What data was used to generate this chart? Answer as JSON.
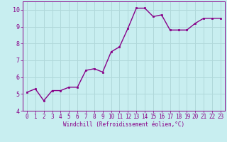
{
  "x": [
    0,
    1,
    2,
    3,
    4,
    5,
    6,
    7,
    8,
    9,
    10,
    11,
    12,
    13,
    14,
    15,
    16,
    17,
    18,
    19,
    20,
    21,
    22,
    23
  ],
  "y": [
    5.1,
    5.3,
    4.6,
    5.2,
    5.2,
    5.4,
    5.4,
    6.4,
    6.5,
    6.3,
    7.5,
    7.8,
    8.9,
    10.1,
    10.1,
    9.6,
    9.7,
    8.8,
    8.8,
    8.8,
    9.2,
    9.5,
    9.5,
    9.5
  ],
  "line_color": "#880088",
  "marker_color": "#880088",
  "bg_color": "#c8eef0",
  "grid_color": "#b0d8da",
  "xlabel": "Windchill (Refroidissement éolien,°C)",
  "ylabel": "",
  "xlim": [
    -0.5,
    23.5
  ],
  "ylim": [
    4.0,
    10.5
  ],
  "yticks": [
    4,
    5,
    6,
    7,
    8,
    9,
    10
  ],
  "xticks": [
    0,
    1,
    2,
    3,
    4,
    5,
    6,
    7,
    8,
    9,
    10,
    11,
    12,
    13,
    14,
    15,
    16,
    17,
    18,
    19,
    20,
    21,
    22,
    23
  ],
  "xlabel_color": "#880088",
  "tick_color": "#880088",
  "spine_color": "#880088",
  "font": "monospace",
  "tick_fontsize": 5.5,
  "xlabel_fontsize": 5.5,
  "ylabel_fontsize": 6.0,
  "linewidth": 1.0,
  "markersize": 2.0
}
